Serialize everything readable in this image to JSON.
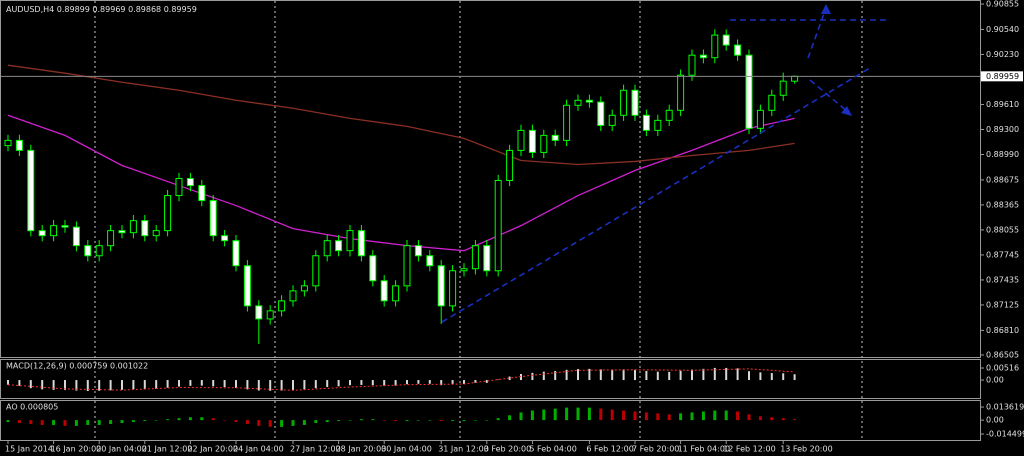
{
  "chart_data": {
    "type": "candlestick",
    "symbol": "AUDUSD,H4",
    "ohlc": [
      [
        0.891,
        0.89235,
        0.8903,
        0.89165
      ],
      [
        0.89165,
        0.89235,
        0.88971,
        0.89041
      ],
      [
        0.89041,
        0.89111,
        0.87976,
        0.88046
      ],
      [
        0.88046,
        0.88116,
        0.87914,
        0.87984
      ],
      [
        0.87984,
        0.88178,
        0.87914,
        0.88108
      ],
      [
        0.88108,
        0.88178,
        0.8802,
        0.8809
      ],
      [
        0.8809,
        0.8816,
        0.8779,
        0.8786
      ],
      [
        0.8786,
        0.8793,
        0.87665,
        0.87735
      ],
      [
        0.87735,
        0.8793,
        0.87665,
        0.8786
      ],
      [
        0.8786,
        0.88116,
        0.8779,
        0.88046
      ],
      [
        0.88046,
        0.88116,
        0.87951,
        0.88021
      ],
      [
        0.88021,
        0.8824,
        0.87951,
        0.8817
      ],
      [
        0.8817,
        0.8824,
        0.87914,
        0.87984
      ],
      [
        0.87984,
        0.88116,
        0.87914,
        0.88046
      ],
      [
        0.88046,
        0.88551,
        0.87976,
        0.88481
      ],
      [
        0.88481,
        0.88762,
        0.88411,
        0.88692
      ],
      [
        0.88692,
        0.88762,
        0.88535,
        0.88605
      ],
      [
        0.88605,
        0.88675,
        0.88349,
        0.88419
      ],
      [
        0.88419,
        0.88489,
        0.87914,
        0.87984
      ],
      [
        0.87984,
        0.88054,
        0.87852,
        0.87922
      ],
      [
        0.87922,
        0.87992,
        0.87541,
        0.87611
      ],
      [
        0.87611,
        0.87681,
        0.87044,
        0.87114
      ],
      [
        0.87114,
        0.87184,
        0.8664,
        0.86952
      ],
      [
        0.86952,
        0.87122,
        0.86882,
        0.87052
      ],
      [
        0.87052,
        0.87246,
        0.86982,
        0.87176
      ],
      [
        0.87176,
        0.8737,
        0.87106,
        0.873
      ],
      [
        0.873,
        0.87432,
        0.8723,
        0.87362
      ],
      [
        0.87362,
        0.87805,
        0.87292,
        0.87735
      ],
      [
        0.87735,
        0.87992,
        0.87665,
        0.87922
      ],
      [
        0.87922,
        0.87992,
        0.87728,
        0.87798
      ],
      [
        0.87798,
        0.88116,
        0.87728,
        0.88046
      ],
      [
        0.88046,
        0.88116,
        0.87665,
        0.87735
      ],
      [
        0.87735,
        0.87805,
        0.87355,
        0.87425
      ],
      [
        0.87425,
        0.87495,
        0.87106,
        0.87176
      ],
      [
        0.87176,
        0.87432,
        0.87106,
        0.87362
      ],
      [
        0.87362,
        0.8793,
        0.87292,
        0.8786
      ],
      [
        0.8786,
        0.8793,
        0.87665,
        0.87735
      ],
      [
        0.87735,
        0.87805,
        0.87541,
        0.87611
      ],
      [
        0.87611,
        0.87681,
        0.8689,
        0.87114
      ],
      [
        0.87114,
        0.87619,
        0.87044,
        0.87549
      ],
      [
        0.87549,
        0.87644,
        0.87479,
        0.87574
      ],
      [
        0.87574,
        0.8793,
        0.87504,
        0.8786
      ],
      [
        0.8786,
        0.8793,
        0.87479,
        0.87549
      ],
      [
        0.87549,
        0.88738,
        0.87479,
        0.88668
      ],
      [
        0.88668,
        0.89111,
        0.88598,
        0.89041
      ],
      [
        0.89041,
        0.89359,
        0.88971,
        0.89289
      ],
      [
        0.89289,
        0.89359,
        0.88946,
        0.89016
      ],
      [
        0.89016,
        0.89297,
        0.88946,
        0.89227
      ],
      [
        0.89227,
        0.89297,
        0.89095,
        0.89165
      ],
      [
        0.89165,
        0.8967,
        0.89095,
        0.896
      ],
      [
        0.896,
        0.89732,
        0.8953,
        0.89662
      ],
      [
        0.89662,
        0.89732,
        0.8957,
        0.8964
      ],
      [
        0.8964,
        0.8971,
        0.89281,
        0.89351
      ],
      [
        0.89351,
        0.89546,
        0.89281,
        0.89476
      ],
      [
        0.89476,
        0.89856,
        0.89406,
        0.89786
      ],
      [
        0.89786,
        0.89856,
        0.89406,
        0.89476
      ],
      [
        0.89476,
        0.89546,
        0.89219,
        0.89289
      ],
      [
        0.89289,
        0.89483,
        0.89219,
        0.89413
      ],
      [
        0.89413,
        0.89608,
        0.89343,
        0.89538
      ],
      [
        0.89538,
        0.90043,
        0.89468,
        0.89973
      ],
      [
        0.89973,
        0.90291,
        0.89903,
        0.90221
      ],
      [
        0.90221,
        0.90291,
        0.9012,
        0.9019
      ],
      [
        0.9019,
        0.9054,
        0.9012,
        0.9047
      ],
      [
        0.9047,
        0.9054,
        0.90276,
        0.90346
      ],
      [
        0.90346,
        0.90416,
        0.90151,
        0.90221
      ],
      [
        0.90221,
        0.90291,
        0.89244,
        0.89314
      ],
      [
        0.89314,
        0.89608,
        0.89244,
        0.89538
      ],
      [
        0.89538,
        0.89794,
        0.89468,
        0.89724
      ],
      [
        0.89724,
        0.90005,
        0.89654,
        0.89899
      ],
      [
        0.89899,
        0.89969,
        0.89868,
        0.89959
      ]
    ],
    "categories": [
      "15 Jan 2014",
      null,
      null,
      null,
      "16 Jan 20:00",
      null,
      null,
      null,
      "20 Jan 04:00",
      null,
      null,
      null,
      "21 Jan 12:00",
      null,
      null,
      null,
      "22 Jan 20:00",
      null,
      null,
      null,
      "24 Jan 04:00",
      null,
      null,
      null,
      null,
      "27 Jan 12:00",
      null,
      null,
      null,
      "28 Jan 20:00",
      null,
      null,
      null,
      "30 Jan 04:00",
      null,
      null,
      null,
      null,
      "31 Jan 12:00",
      null,
      null,
      null,
      "3 Feb 20:00",
      null,
      null,
      null,
      "5 Feb 04:00",
      null,
      null,
      null,
      null,
      "6 Feb 12:00",
      null,
      null,
      null,
      "7 Feb 20:00",
      null,
      null,
      null,
      "11 Feb 04:00",
      null,
      null,
      null,
      "12 Feb 12:00",
      null,
      null,
      null,
      null,
      "13 Feb 20:00",
      null
    ],
    "ylim": [
      0.8648,
      0.90905
    ],
    "yticks": [
      0.90855,
      {
        "value": 0.9054,
        "label": "0.90540"
      },
      {
        "value": 0.9023,
        "label": "0.90230"
      },
      {
        "value": 0.8961,
        "label": "0.89610"
      },
      {
        "value": 0.893,
        "label": "0.89300"
      },
      {
        "value": 0.8899,
        "label": "0.88990"
      },
      0.88675,
      0.88365,
      0.88055,
      0.87745,
      0.87435,
      0.87125,
      {
        "value": 0.8681,
        "label": "0.86810"
      },
      0.86505
    ],
    "grid": false,
    "bull_color": "#000000",
    "bear_color": "#ffffff",
    "wick_color": "#00ff00",
    "indicators": [
      {
        "color": "#d020d0",
        "x": [
          0,
          5,
          10,
          15,
          20,
          25,
          30,
          35,
          40,
          45,
          50,
          55,
          60,
          65,
          69
        ],
        "values": [
          0.89476,
          0.89227,
          0.88854,
          0.88605,
          0.88357,
          0.88071,
          0.87947,
          0.8786,
          0.87798,
          0.88108,
          0.88481,
          0.88792,
          0.89041,
          0.89314,
          0.89438
        ]
      },
      {
        "color": "#8a2f25",
        "x": [
          0,
          5,
          10,
          15,
          20,
          25,
          30,
          35,
          40,
          45,
          50,
          55,
          60,
          65,
          69
        ],
        "values": [
          0.90097,
          0.89998,
          0.89886,
          0.89786,
          0.89662,
          0.89563,
          0.89438,
          0.89339,
          0.8919,
          0.88916,
          0.88866,
          0.88904,
          0.88978,
          0.89041,
          0.89128
        ]
      }
    ],
    "panels": [
      {
        "type": "histogram",
        "title": "MACD(12,26,9) 0.000759 0.001022",
        "color": "#d8d8d8",
        "values": [
          -0.002,
          -0.0025,
          -0.0035,
          -0.004,
          -0.0042,
          -0.0043,
          -0.0045,
          -0.0047,
          -0.0046,
          -0.0044,
          -0.0042,
          -0.004,
          -0.0039,
          -0.0038,
          -0.0033,
          -0.0028,
          -0.0025,
          -0.0024,
          -0.0027,
          -0.003,
          -0.0034,
          -0.004,
          -0.0045,
          -0.0046,
          -0.0045,
          -0.0043,
          -0.004,
          -0.0035,
          -0.003,
          -0.0027,
          -0.0022,
          -0.0021,
          -0.0022,
          -0.0025,
          -0.0024,
          -0.0018,
          -0.0016,
          -0.0016,
          -0.0022,
          -0.0019,
          -0.0017,
          -0.0012,
          -0.0012,
          0.0002,
          0.0015,
          0.0026,
          0.0031,
          0.0036,
          0.0039,
          0.0044,
          0.0047,
          0.0048,
          0.0046,
          0.0045,
          0.0046,
          0.0043,
          0.0039,
          0.0036,
          0.0035,
          0.004,
          0.0045,
          0.0048,
          0.0052,
          0.0052,
          0.005,
          0.0038,
          0.0033,
          0.003,
          0.0029,
          0.0025
        ],
        "signal": {
          "color": "#ff3030",
          "x": [
            0,
            5,
            10,
            15,
            20,
            25,
            30,
            35,
            40,
            45,
            50,
            55,
            60,
            65,
            69
          ],
          "values": [
            -0.002,
            -0.0038,
            -0.0043,
            -0.0032,
            -0.0033,
            -0.0044,
            -0.003,
            -0.002,
            -0.0017,
            0.0015,
            0.0042,
            0.0044,
            0.0042,
            0.0048,
            0.0035
          ]
        },
        "ylim": [
          -0.0077,
          0.0086
        ],
        "yticks": [
          0.00516,
          {
            "value": 0,
            "label": "0.00"
          }
        ]
      },
      {
        "type": "oscillator",
        "title": "AO 0.000805",
        "up_color": "#00b000",
        "down_color": "#c00000",
        "values": [
          -0.002,
          -0.003,
          -0.004,
          -0.005,
          -0.005,
          -0.006,
          -0.006,
          -0.005,
          -0.005,
          -0.004,
          -0.003,
          -0.002,
          -0.001,
          0,
          0.001,
          0.002,
          0.003,
          0.003,
          0.002,
          0,
          -0.002,
          -0.004,
          -0.006,
          -0.007,
          -0.007,
          -0.006,
          -0.005,
          -0.003,
          -0.002,
          -0.001,
          0,
          0.001,
          0.001,
          0,
          -0.001,
          -0.001,
          0,
          0,
          -0.001,
          -0.001,
          -0.001,
          0,
          0,
          0.002,
          0.005,
          0.008,
          0.01,
          0.011,
          0.012,
          0.013,
          0.013,
          0.013,
          0.012,
          0.011,
          0.01,
          0.009,
          0.008,
          0.007,
          0.006,
          0.007,
          0.008,
          0.009,
          0.01,
          0.01,
          0.009,
          0.006,
          0.004,
          0.003,
          0.002,
          0.001
        ],
        "ylim": [
          -0.0207,
          0.0199
        ],
        "yticks": [
          0.013619,
          {
            "value": 0,
            "label": "0.00"
          },
          -0.014499
        ]
      }
    ]
  }
}
